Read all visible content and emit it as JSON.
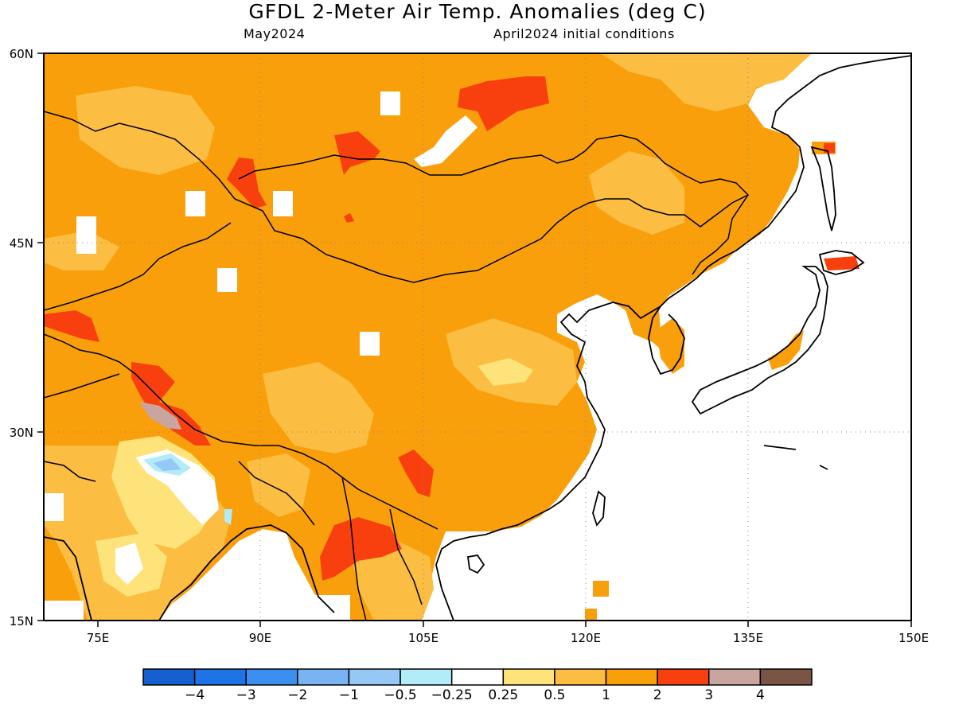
{
  "title": "GFDL 2-Meter Air Temp. Anomalies (deg C)",
  "subtitle_left": "May2024",
  "subtitle_right": "April2024 initial conditions",
  "map": {
    "lon_range": [
      70,
      150
    ],
    "lat_range": [
      15,
      60
    ],
    "lon_ticks": [
      "75E",
      "90E",
      "105E",
      "120E",
      "135E",
      "150E"
    ],
    "lat_ticks": [
      "60N",
      "45N",
      "30N",
      "15N"
    ],
    "grid": "dotted at 15-degree intervals"
  },
  "colorbar": {
    "bins": [
      {
        "color": "#1560d0"
      },
      {
        "color": "#1e74e6"
      },
      {
        "color": "#3a8ff0"
      },
      {
        "color": "#79b3f2"
      },
      {
        "color": "#96c8f5"
      },
      {
        "color": "#b2ecf8"
      },
      {
        "color": "#ffffff"
      },
      {
        "color": "#fde37a"
      },
      {
        "color": "#fbbd42"
      },
      {
        "color": "#f99f0c"
      },
      {
        "color": "#f8400e"
      },
      {
        "color": "#c8a59e"
      },
      {
        "color": "#7a5444"
      }
    ],
    "labels": [
      "-4",
      "-3",
      "-2",
      "-1",
      "-0.5",
      "-0.25",
      "0.25",
      "0.5",
      "1",
      "2",
      "3",
      "4"
    ]
  },
  "anomaly_colors": {
    "ocean": "#ffffff",
    "base_anomaly_1_to_2": "#f99f0c",
    "anomaly_0.5_to_1": "#fbbd42",
    "anomaly_0.25_to_0.5": "#fde37a",
    "anomaly_2_to_3": "#f8400e",
    "anomaly_3_to_4": "#c8a59e",
    "anomaly_neg": "#96c8f5"
  }
}
